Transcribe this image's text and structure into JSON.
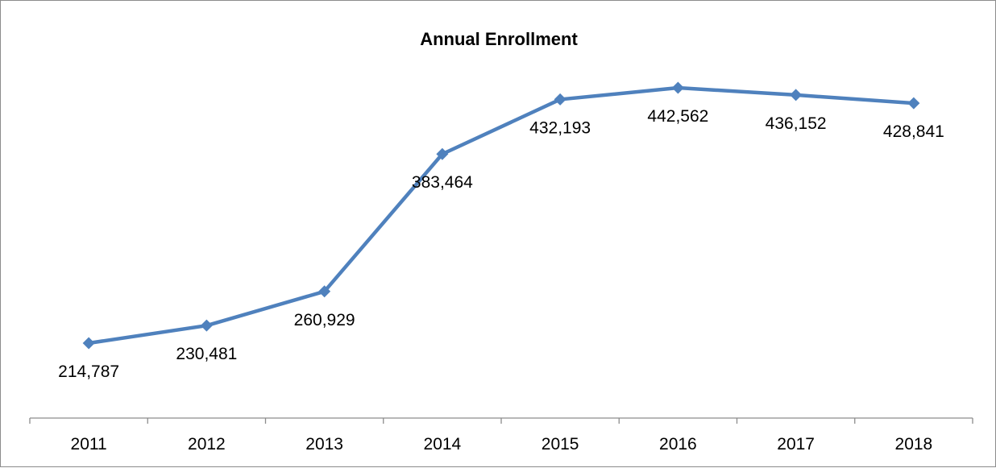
{
  "chart_data": {
    "type": "line",
    "title": "Annual Enrollment",
    "categories": [
      "2011",
      "2012",
      "2013",
      "2014",
      "2015",
      "2016",
      "2017",
      "2018"
    ],
    "series": [
      {
        "values": [
          214787,
          230481,
          260929,
          383464,
          432193,
          442562,
          436152,
          428841
        ],
        "labels": [
          "214,787",
          "230,481",
          "260,929",
          "383,464",
          "432,193",
          "442,562",
          "436,152",
          "428,841"
        ],
        "color": "#4f81bd",
        "marker": "diamond"
      }
    ],
    "xlabel": "",
    "ylabel": "",
    "grid": false,
    "legend": "none",
    "axis_color": "#8c8c8c"
  }
}
